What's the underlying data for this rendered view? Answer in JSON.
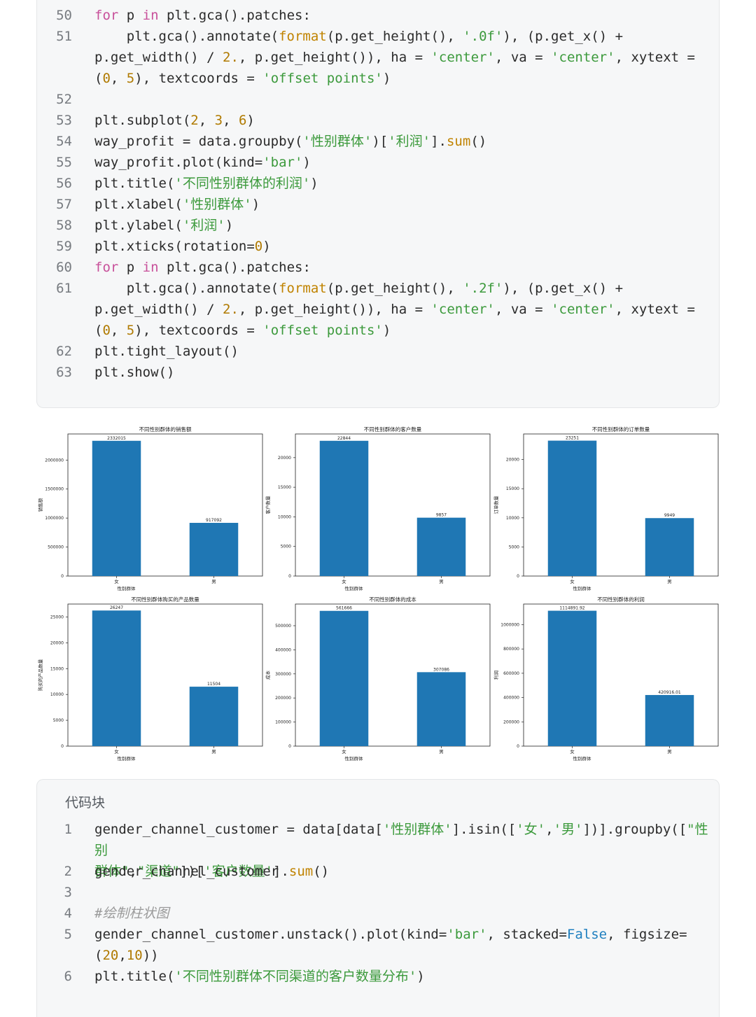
{
  "top_code": {
    "lines": [
      {
        "n": "50",
        "html": "<span class=\"kw\">for</span> p <span class=\"kw\">in</span> plt.gca().patches:"
      },
      {
        "n": "51",
        "html": "    plt.gca().annotate(<span class=\"fn\">format</span>(p.get_height(), <span class=\"str\">'.0f'</span>), (p.get_x() +\np.get_width() / <span class=\"num\">2.</span>, p.get_height()), ha = <span class=\"str\">'center'</span>, va = <span class=\"str\">'center'</span>, xytext =\n(<span class=\"num\">0</span>, <span class=\"num\">5</span>), textcoords = <span class=\"str\">'offset points'</span>)"
      },
      {
        "n": "52",
        "html": ""
      },
      {
        "n": "53",
        "html": "plt.subplot(<span class=\"num\">2</span>, <span class=\"num\">3</span>, <span class=\"num\">6</span>)"
      },
      {
        "n": "54",
        "html": "way_profit = data.groupby(<span class=\"str\">'性别群体'</span>)[<span class=\"str\">'利润'</span>].<span class=\"fn\">sum</span>()"
      },
      {
        "n": "55",
        "html": "way_profit.plot(kind=<span class=\"str\">'bar'</span>)"
      },
      {
        "n": "56",
        "html": "plt.title(<span class=\"str\">'不同性别群体的利润'</span>)"
      },
      {
        "n": "57",
        "html": "plt.xlabel(<span class=\"str\">'性别群体'</span>)"
      },
      {
        "n": "58",
        "html": "plt.ylabel(<span class=\"str\">'利润'</span>)"
      },
      {
        "n": "59",
        "html": "plt.xticks(rotation=<span class=\"num\">0</span>)"
      },
      {
        "n": "60",
        "html": "<span class=\"kw\">for</span> p <span class=\"kw\">in</span> plt.gca().patches:"
      },
      {
        "n": "61",
        "html": "    plt.gca().annotate(<span class=\"fn\">format</span>(p.get_height(), <span class=\"str\">'.2f'</span>), (p.get_x() +\np.get_width() / <span class=\"num\">2.</span>, p.get_height()), ha = <span class=\"str\">'center'</span>, va = <span class=\"str\">'center'</span>, xytext =\n(<span class=\"num\">0</span>, <span class=\"num\">5</span>), textcoords = <span class=\"str\">'offset points'</span>)"
      },
      {
        "n": "62",
        "html": "plt.tight_layout()"
      },
      {
        "n": "63",
        "html": "plt.show()"
      }
    ]
  },
  "bottom_code": {
    "caption": "代码块",
    "lines": [
      {
        "n": "1",
        "html": "gender_channel_customer = data[data[<span class=\"str\">'性别群体'</span>].isin([<span class=\"str\">'女'</span>,<span class=\"str\">'男'</span>])].groupby([<span class=\"str\">\"性别\n群体\"</span>,<span class=\"str\">\"渠道\"</span>])[<span class=\"str\">'客户数量'</span>].<span class=\"fn\">sum</span>()"
      },
      {
        "n": "2",
        "html": "gender_channel_customer"
      },
      {
        "n": "3",
        "html": ""
      },
      {
        "n": "4",
        "html": "<span class=\"cm\">#绘制柱状图</span>"
      },
      {
        "n": "5",
        "html": "gender_channel_customer.unstack().plot(kind=<span class=\"str\">'bar'</span>, stacked=<span class=\"bool\">False</span>, figsize=\n(<span class=\"num\">20</span>,<span class=\"num\">10</span>))"
      },
      {
        "n": "6",
        "html": "plt.title(<span class=\"str\">'不同性别群体不同渠道的客户数量分布'</span>)"
      }
    ]
  },
  "chart_data": [
    {
      "type": "bar",
      "title": "不同性别群体的销售额",
      "xlabel": "性别群体",
      "ylabel": "销售额",
      "categories": [
        "女",
        "男"
      ],
      "values": [
        2332015,
        917092
      ],
      "labels": [
        "2332015",
        "917092"
      ],
      "ylim": [
        0,
        2450000
      ],
      "yticks": [
        0,
        500000,
        1000000,
        1500000,
        2000000
      ],
      "color": "#1f77b4"
    },
    {
      "type": "bar",
      "title": "不同性别群体的客户数量",
      "xlabel": "性别群体",
      "ylabel": "客户数量",
      "categories": [
        "女",
        "男"
      ],
      "values": [
        22844,
        9857
      ],
      "labels": [
        "22844",
        "9857"
      ],
      "ylim": [
        0,
        24000
      ],
      "yticks": [
        0,
        5000,
        10000,
        15000,
        20000
      ],
      "color": "#1f77b4"
    },
    {
      "type": "bar",
      "title": "不同性别群体的订单数量",
      "xlabel": "性别群体",
      "ylabel": "订单数量",
      "categories": [
        "女",
        "男"
      ],
      "values": [
        23251,
        9949
      ],
      "labels": [
        "23251",
        "9949"
      ],
      "ylim": [
        0,
        24400
      ],
      "yticks": [
        0,
        5000,
        10000,
        15000,
        20000
      ],
      "color": "#1f77b4"
    },
    {
      "type": "bar",
      "title": "不同性别群体购买的产品数量",
      "xlabel": "性别群体",
      "ylabel": "购买的产品数量",
      "categories": [
        "女",
        "男"
      ],
      "values": [
        26247,
        11504
      ],
      "labels": [
        "26247",
        "11504"
      ],
      "ylim": [
        0,
        27500
      ],
      "yticks": [
        0,
        5000,
        10000,
        15000,
        20000,
        25000
      ],
      "color": "#1f77b4"
    },
    {
      "type": "bar",
      "title": "不同性别群体的成本",
      "xlabel": "性别群体",
      "ylabel": "成本",
      "categories": [
        "女",
        "男"
      ],
      "values": [
        561666,
        307086
      ],
      "labels": [
        "561666",
        "307086"
      ],
      "ylim": [
        0,
        590000
      ],
      "yticks": [
        0,
        100000,
        200000,
        300000,
        400000,
        500000
      ],
      "color": "#1f77b4"
    },
    {
      "type": "bar",
      "title": "不同性别群体的利润",
      "xlabel": "性别群体",
      "ylabel": "利润",
      "categories": [
        "女",
        "男"
      ],
      "values": [
        1114891.92,
        420916.01
      ],
      "labels": [
        "1114891.92",
        "420916.01"
      ],
      "ylim": [
        0,
        1170000
      ],
      "yticks": [
        0,
        200000,
        400000,
        600000,
        800000,
        1000000
      ],
      "color": "#1f77b4"
    }
  ]
}
